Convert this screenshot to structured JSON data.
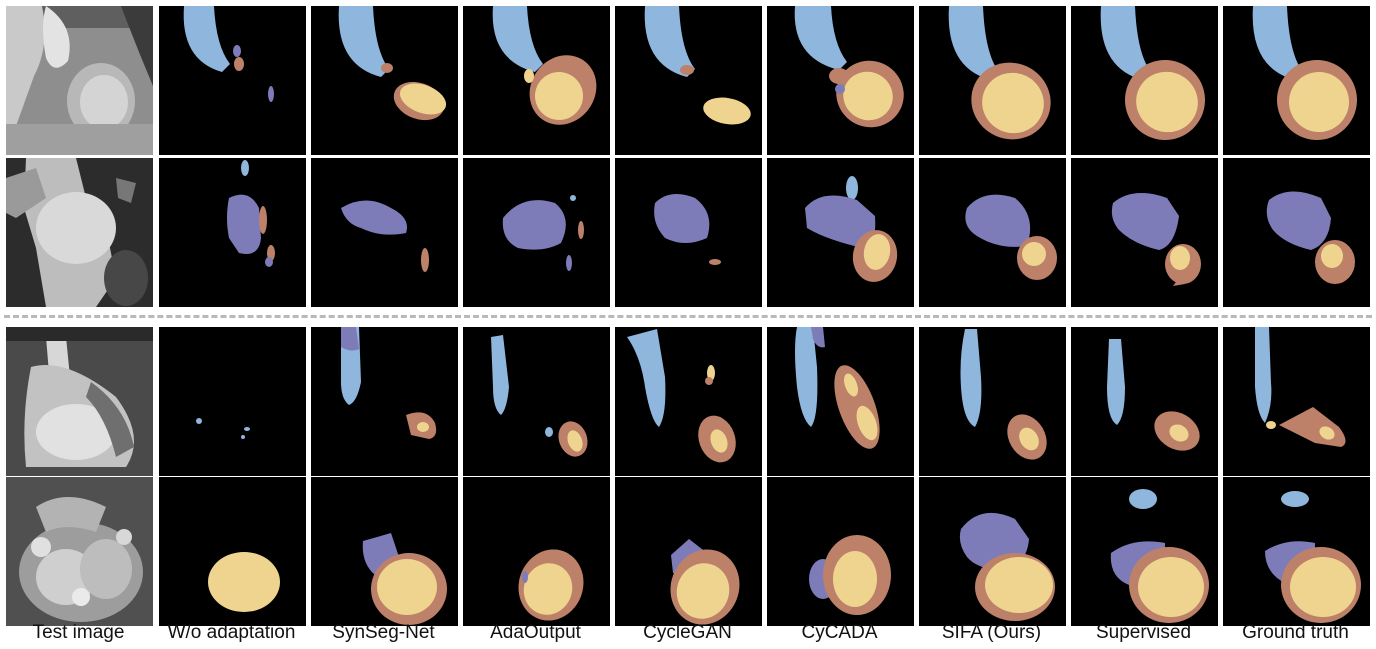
{
  "colors": {
    "aorta": "#8fb6dc",
    "left_atrium": "#7e7cb8",
    "myocardium": "#bd8068",
    "left_ventricle": "#efd48f",
    "background": "#000000"
  },
  "columns": [
    {
      "label": "Test image"
    },
    {
      "label": "W/o adaptation"
    },
    {
      "label": "SynSeg-Net"
    },
    {
      "label": "AdaOutput"
    },
    {
      "label": "CycleGAN"
    },
    {
      "label": "CyCADA"
    },
    {
      "label": "SIFA (Ours)"
    },
    {
      "label": "Supervised"
    },
    {
      "label": "Ground truth"
    }
  ],
  "rows": [
    {
      "group": "upper",
      "image": "ct-scan-1"
    },
    {
      "group": "upper",
      "image": "ct-scan-2"
    },
    {
      "group": "lower",
      "image": "mr-scan-1"
    },
    {
      "group": "lower",
      "image": "mr-scan-2"
    }
  ]
}
